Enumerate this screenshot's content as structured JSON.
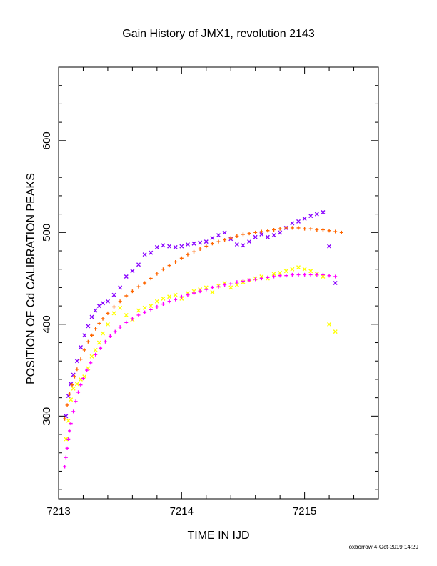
{
  "chart_data": {
    "type": "scatter",
    "title": "Gain History of JMX1, revolution 2143",
    "xlabel": "TIME IN IJD",
    "ylabel": "POSITION OF Cd CALIBRATION PEAKS",
    "xlim": [
      7213.0,
      7215.6
    ],
    "ylim": [
      210,
      680
    ],
    "x_ticks": [
      7213,
      7214,
      7215
    ],
    "x_tick_labels": [
      "7213",
      "7214",
      "7215"
    ],
    "y_ticks": [
      300,
      400,
      500,
      600
    ],
    "y_tick_labels": [
      "300",
      "400",
      "500",
      "600"
    ],
    "grid": false,
    "legend": "none",
    "series": [
      {
        "marker": "x",
        "color": "#8800ff",
        "x": [
          7213.06,
          7213.08,
          7213.1,
          7213.12,
          7213.15,
          7213.18,
          7213.21,
          7213.24,
          7213.27,
          7213.3,
          7213.33,
          7213.36,
          7213.4,
          7213.45,
          7213.5,
          7213.55,
          7213.6,
          7213.65,
          7213.7,
          7213.75,
          7213.8,
          7213.85,
          7213.9,
          7213.95,
          7214.0,
          7214.05,
          7214.1,
          7214.15,
          7214.2,
          7214.25,
          7214.3,
          7214.35,
          7214.4,
          7214.45,
          7214.5,
          7214.55,
          7214.6,
          7214.65,
          7214.7,
          7214.75,
          7214.8,
          7214.85,
          7214.9,
          7214.95,
          7215.0,
          7215.05,
          7215.1,
          7215.15,
          7215.2,
          7215.25
        ],
        "y": [
          300,
          322,
          335,
          345,
          360,
          375,
          388,
          398,
          408,
          415,
          420,
          423,
          425,
          432,
          440,
          452,
          458,
          465,
          476,
          478,
          484,
          486,
          485,
          484,
          485,
          487,
          488,
          489,
          490,
          494,
          497,
          500,
          493,
          487,
          486,
          490,
          495,
          498,
          495,
          497,
          500,
          505,
          510,
          512,
          515,
          518,
          520,
          522,
          485,
          445
        ]
      },
      {
        "marker": "+",
        "color": "#ff6600",
        "x": [
          7213.05,
          7213.07,
          7213.09,
          7213.11,
          7213.13,
          7213.15,
          7213.18,
          7213.21,
          7213.24,
          7213.27,
          7213.3,
          7213.33,
          7213.36,
          7213.4,
          7213.45,
          7213.5,
          7213.55,
          7213.6,
          7213.65,
          7213.7,
          7213.75,
          7213.8,
          7213.85,
          7213.9,
          7213.95,
          7214.0,
          7214.05,
          7214.1,
          7214.15,
          7214.2,
          7214.25,
          7214.3,
          7214.35,
          7214.4,
          7214.45,
          7214.5,
          7214.55,
          7214.6,
          7214.65,
          7214.7,
          7214.75,
          7214.8,
          7214.85,
          7214.9,
          7214.95,
          7215.0,
          7215.05,
          7215.1,
          7215.15,
          7215.2,
          7215.25,
          7215.3
        ],
        "y": [
          297,
          312,
          324,
          334,
          343,
          351,
          362,
          372,
          381,
          388,
          395,
          401,
          406,
          412,
          419,
          425,
          431,
          436,
          441,
          445,
          450,
          455,
          460,
          464,
          468,
          472,
          476,
          479,
          482,
          485,
          488,
          490,
          492,
          494,
          496,
          498,
          499,
          500,
          501,
          502,
          503,
          504,
          505,
          505,
          505,
          504,
          504,
          503,
          503,
          502,
          501,
          500
        ]
      },
      {
        "marker": "x",
        "color": "#ffff00",
        "x": [
          7213.06,
          7213.08,
          7213.1,
          7213.12,
          7213.15,
          7213.18,
          7213.21,
          7213.24,
          7213.27,
          7213.3,
          7213.33,
          7213.36,
          7213.4,
          7213.45,
          7213.5,
          7213.55,
          7213.6,
          7213.65,
          7213.7,
          7213.75,
          7213.8,
          7213.85,
          7213.9,
          7213.95,
          7214.0,
          7214.05,
          7214.1,
          7214.15,
          7214.2,
          7214.25,
          7214.3,
          7214.35,
          7214.4,
          7214.45,
          7214.5,
          7214.55,
          7214.6,
          7214.65,
          7214.7,
          7214.75,
          7214.8,
          7214.85,
          7214.9,
          7214.95,
          7215.0,
          7215.05,
          7215.1,
          7215.15,
          7215.2,
          7215.25
        ],
        "y": [
          275,
          295,
          318,
          330,
          335,
          340,
          343,
          352,
          365,
          372,
          380,
          390,
          400,
          412,
          418,
          410,
          405,
          415,
          418,
          420,
          425,
          428,
          430,
          432,
          428,
          434,
          436,
          438,
          440,
          435,
          442,
          445,
          440,
          443,
          446,
          448,
          450,
          452,
          450,
          455,
          456,
          458,
          460,
          462,
          460,
          458,
          455,
          452,
          400,
          392
        ]
      },
      {
        "marker": "+",
        "color": "#ff00ff",
        "x": [
          7213.05,
          7213.06,
          7213.07,
          7213.08,
          7213.09,
          7213.1,
          7213.12,
          7213.14,
          7213.16,
          7213.18,
          7213.2,
          7213.23,
          7213.26,
          7213.3,
          7213.34,
          7213.38,
          7213.42,
          7213.46,
          7213.5,
          7213.55,
          7213.6,
          7213.65,
          7213.7,
          7213.75,
          7213.8,
          7213.85,
          7213.9,
          7213.95,
          7214.0,
          7214.05,
          7214.1,
          7214.15,
          7214.2,
          7214.25,
          7214.3,
          7214.35,
          7214.4,
          7214.45,
          7214.5,
          7214.55,
          7214.6,
          7214.65,
          7214.7,
          7214.75,
          7214.8,
          7214.85,
          7214.9,
          7214.95,
          7215.0,
          7215.05,
          7215.1,
          7215.15,
          7215.2,
          7215.25
        ],
        "y": [
          245,
          255,
          265,
          275,
          284,
          292,
          305,
          316,
          326,
          334,
          341,
          350,
          358,
          367,
          374,
          381,
          387,
          392,
          397,
          402,
          406,
          410,
          413,
          416,
          419,
          422,
          425,
          427,
          430,
          432,
          434,
          436,
          438,
          440,
          441,
          443,
          444,
          446,
          447,
          448,
          449,
          450,
          451,
          452,
          453,
          453,
          454,
          454,
          454,
          454,
          454,
          454,
          453,
          452
        ]
      }
    ]
  },
  "footer": {
    "text": "oxborrow  4-Oct-2019 14:29"
  }
}
